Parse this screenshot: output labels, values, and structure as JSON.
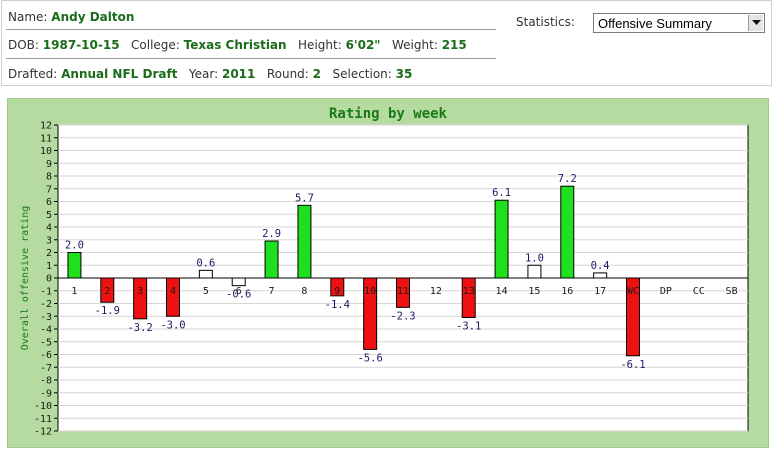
{
  "player": {
    "name_label": "Name:",
    "name": "Andy Dalton",
    "dob_label": "DOB:",
    "dob": "1987-10-15",
    "college_label": "College:",
    "college": "Texas Christian",
    "height_label": "Height:",
    "height": "6'02\"",
    "weight_label": "Weight:",
    "weight": "215",
    "drafted_label": "Drafted:",
    "drafted": "Annual NFL Draft",
    "year_label": "Year:",
    "year": "2011",
    "round_label": "Round:",
    "round": "2",
    "selection_label": "Selection:",
    "selection": "35"
  },
  "statistics": {
    "label": "Statistics:",
    "selected": "Offensive Summary",
    "dropdown_icon": "chevron-down-icon"
  },
  "chart_data": {
    "type": "bar",
    "title": "Rating by week",
    "ylabel": "Overall offensive rating",
    "xlabel": "",
    "ylim": [
      -12,
      12
    ],
    "yticks": [
      12,
      11,
      10,
      9,
      8,
      7,
      6,
      5,
      4,
      3,
      2,
      1,
      0,
      -1,
      -2,
      -3,
      -4,
      -5,
      -6,
      -7,
      -8,
      -9,
      -10,
      -11,
      -12
    ],
    "grid": true,
    "legend": "none",
    "categories": [
      "1",
      "2",
      "3",
      "4",
      "5",
      "6",
      "7",
      "8",
      "9",
      "10",
      "11",
      "12",
      "13",
      "14",
      "15",
      "16",
      "17",
      "WC",
      "DP",
      "CC",
      "SB"
    ],
    "values": [
      2.0,
      -1.9,
      -3.2,
      -3.0,
      0.6,
      -0.6,
      2.9,
      5.7,
      -1.4,
      -5.6,
      -2.3,
      null,
      -3.1,
      6.1,
      1.0,
      7.2,
      0.4,
      -6.1,
      null,
      null,
      null
    ],
    "value_labels": [
      "2.0",
      "-1.9",
      "-3.2",
      "-3.0",
      "0.6",
      "-0.6",
      "2.9",
      "5.7",
      "-1.4",
      "-5.6",
      "-2.3",
      "",
      "-3.1",
      "6.1",
      "1.0",
      "7.2",
      "0.4",
      "-6.1",
      "",
      "",
      ""
    ],
    "colors": {
      "good": "#1ee01e",
      "bad": "#ee1111",
      "neutral": "#ffffff",
      "axis": "#000000",
      "title": "#1a7a1a",
      "tick_label": "#1a1a1a",
      "value_label": "#1a1a66"
    },
    "good_threshold": 2,
    "bad_threshold": -1
  }
}
